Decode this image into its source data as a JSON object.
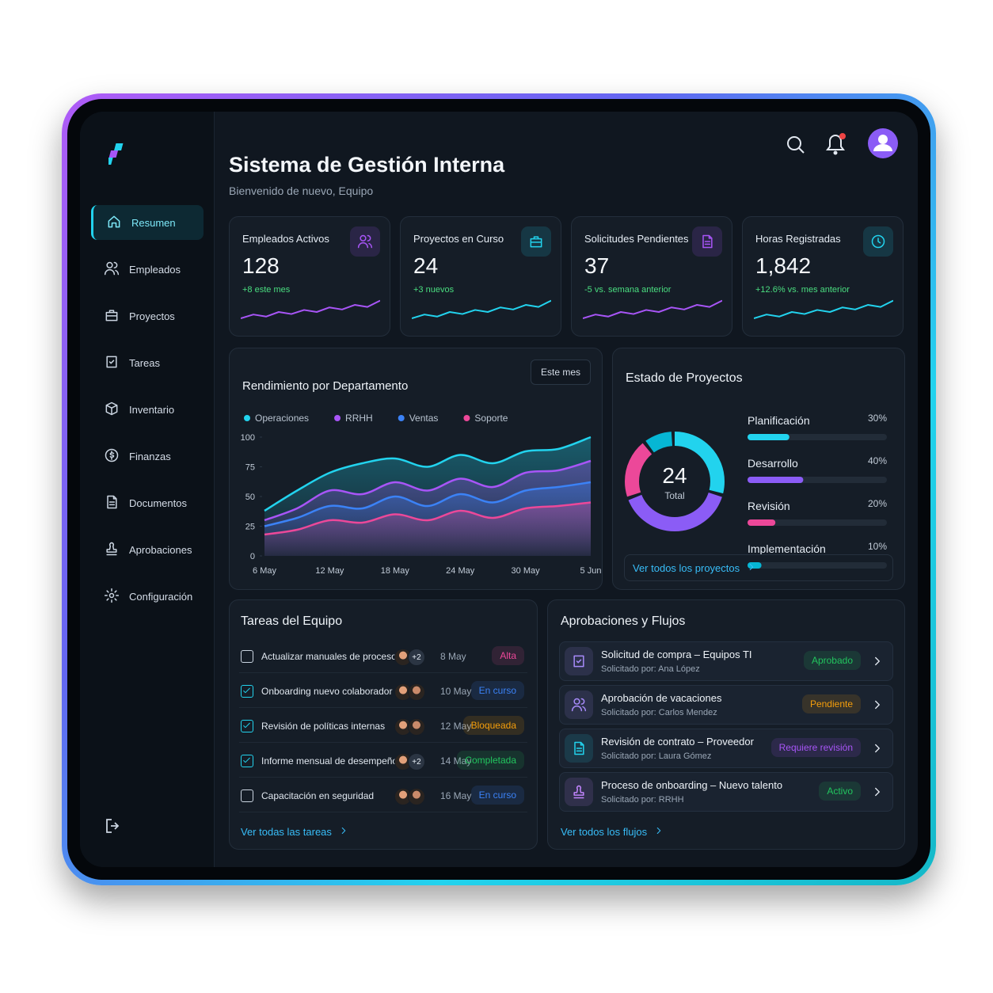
{
  "sidebar": {
    "nav": [
      "Resumen",
      "Empleados",
      "Proyectos",
      "Tareas",
      "Inventario",
      "Finanzas",
      "Documentos",
      "Aprobaciones",
      "Configuración"
    ],
    "active": 0
  },
  "header": {
    "title": "Sistema de Gestión Interna",
    "subtitle": "Bienvenido de nuevo, Equipo"
  },
  "stats": [
    {
      "label": "Empleados Activos",
      "value": "128",
      "change": "+8 este mes",
      "color": "#a855f7"
    },
    {
      "label": "Proyectos en Curso",
      "value": "24",
      "change": "+3 nuevos",
      "color": "#22d3ee"
    },
    {
      "label": "Solicitudes Pendientes",
      "value": "37",
      "change": "-5 vs. semana anterior",
      "color": "#a855f7"
    },
    {
      "label": "Horas Registradas",
      "value": "1,842",
      "change": "+12.6% vs. mes anterior",
      "color": "#22d3ee"
    }
  ],
  "performance": {
    "period": "Este mes",
    "chart_data": {
      "type": "area",
      "title": "Rendimiento por Departamento",
      "categories": [
        "6 May",
        null,
        "12 May",
        null,
        "18 May",
        null,
        "24 May",
        null,
        "30 May",
        null,
        "5 Jun"
      ],
      "series": [
        {
          "name": "Operaciones",
          "color": "#22d3ee",
          "values": [
            38,
            55,
            70,
            78,
            82,
            75,
            85,
            78,
            88,
            90,
            100
          ]
        },
        {
          "name": "RRHH",
          "color": "#a855f7",
          "values": [
            30,
            40,
            55,
            52,
            62,
            55,
            65,
            58,
            70,
            72,
            80
          ]
        },
        {
          "name": "Ventas",
          "color": "#3b82f6",
          "values": [
            25,
            32,
            42,
            40,
            50,
            42,
            52,
            45,
            55,
            58,
            62
          ]
        },
        {
          "name": "Soporte",
          "color": "#ec4899",
          "values": [
            18,
            22,
            30,
            28,
            35,
            30,
            38,
            32,
            40,
            42,
            45
          ]
        }
      ],
      "ylim": [
        0,
        100
      ],
      "yticks": [
        0,
        25,
        50,
        75,
        100
      ],
      "legend": "top-left",
      "grid": false
    }
  },
  "project_status": {
    "total": "24",
    "total_label": "Total",
    "link": "Ver todos los proyectos",
    "chart_data": {
      "type": "donut",
      "title": "Estado de Proyectos",
      "categories": [
        "Planificación",
        "Desarrollo",
        "Revisión",
        "Implementación"
      ],
      "values": [
        30,
        40,
        20,
        10
      ],
      "value_labels": [
        "30%",
        "40%",
        "20%",
        "10%"
      ],
      "colors": [
        "#22d3ee",
        "#8b5cf6",
        "#ec4899",
        "#06b6d4"
      ]
    }
  },
  "tasks": {
    "title": "Tareas del Equipo",
    "link": "Ver todas las tareas",
    "rows": [
      {
        "name": "Actualizar manuales de procesos",
        "extra": "+2",
        "date": "8 May",
        "status": "Alta",
        "status_color": "#ec4899",
        "done": false
      },
      {
        "name": "Onboarding nuevo colaborador",
        "date": "10 May",
        "status": "En curso",
        "status_color": "#3b82f6",
        "done": true
      },
      {
        "name": "Revisión de políticas internas",
        "date": "12 May",
        "status": "Bloqueada",
        "status_color": "#f59e0b",
        "done": true
      },
      {
        "name": "Informe mensual de desempeño",
        "extra": "+2",
        "date": "14 May",
        "status": "Completada",
        "status_color": "#22c55e",
        "done": true
      },
      {
        "name": "Capacitación en seguridad",
        "date": "16 May",
        "status": "En curso",
        "status_color": "#3b82f6",
        "done": false
      }
    ]
  },
  "approvals": {
    "title": "Aprobaciones y Flujos",
    "link": "Ver todos los flujos",
    "rows": [
      {
        "title": "Solicitud de compra – Equipos TI",
        "requester": "Solicitado por: Ana López",
        "status": "Aprobado",
        "status_color": "#22c55e"
      },
      {
        "title": "Aprobación de vacaciones",
        "requester": "Solicitado por: Carlos Mendez",
        "status": "Pendiente",
        "status_color": "#f59e0b"
      },
      {
        "title": "Revisión de contrato – Proveedor",
        "requester": "Solicitado por: Laura Gómez",
        "status": "Requiere revisión",
        "status_color": "#a855f7"
      },
      {
        "title": "Proceso de onboarding – Nuevo talento",
        "requester": "Solicitado por: RRHH",
        "status": "Activo",
        "status_color": "#22c55e"
      }
    ]
  }
}
